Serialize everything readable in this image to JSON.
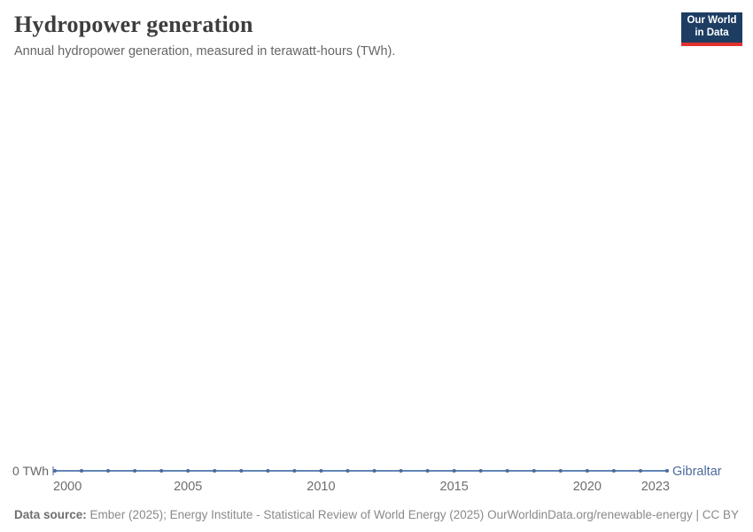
{
  "header": {
    "title": "Hydropower generation",
    "subtitle": "Annual hydropower generation, measured in terawatt-hours (TWh)."
  },
  "logo": {
    "line1": "Our World",
    "line2": "in Data",
    "bg_color": "#1d3d63",
    "bar_color": "#e0332e"
  },
  "chart_data": {
    "type": "line",
    "title": "Hydropower generation",
    "subtitle": "Annual hydropower generation, measured in terawatt-hours (TWh).",
    "xlabel": "",
    "ylabel": "TWh",
    "xlim": [
      2000,
      2023
    ],
    "ylim": [
      0,
      0
    ],
    "grid": false,
    "legend_position": "end-of-line",
    "y_axis_tick_label": "0 TWh",
    "x_ticks": [
      2000,
      2005,
      2010,
      2015,
      2020,
      2023
    ],
    "x": [
      2000,
      2001,
      2002,
      2003,
      2004,
      2005,
      2006,
      2007,
      2008,
      2009,
      2010,
      2011,
      2012,
      2013,
      2014,
      2015,
      2016,
      2017,
      2018,
      2019,
      2020,
      2021,
      2022,
      2023
    ],
    "series": [
      {
        "name": "Gibraltar",
        "color": "#4c6a9c",
        "line_color": "#6385b7",
        "values": [
          0,
          0,
          0,
          0,
          0,
          0,
          0,
          0,
          0,
          0,
          0,
          0,
          0,
          0,
          0,
          0,
          0,
          0,
          0,
          0,
          0,
          0,
          0,
          0
        ]
      }
    ],
    "colors": {
      "tick_label": "#6e6e6e",
      "axis_label": "#666666"
    }
  },
  "footer": {
    "source_label": "Data source:",
    "source_text": "Ember (2025); Energy Institute - Statistical Review of World Energy (2025)",
    "link": "OurWorldinData.org/renewable-energy | CC BY"
  }
}
